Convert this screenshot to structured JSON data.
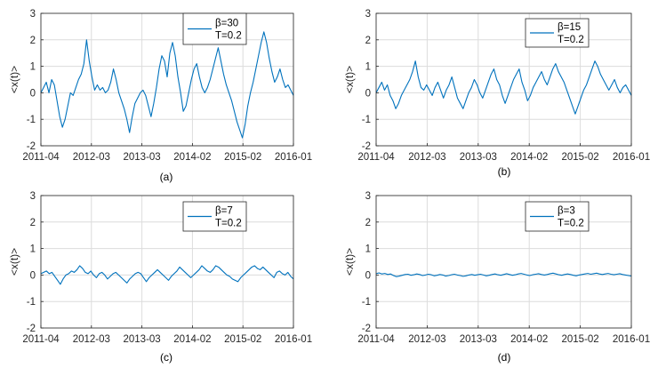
{
  "figure": {
    "line_color": "#0072BD",
    "grid_color": "#dcdcdc"
  },
  "chart_data": [
    {
      "type": "line",
      "caption": "(a)",
      "ylabel": "<x(t)>",
      "ylim": [
        -2,
        3
      ],
      "yticks": [
        "-2",
        "-1",
        "0",
        "1",
        "2",
        "3"
      ],
      "xtick_labels": [
        "2011-04",
        "2012-03",
        "2013-03",
        "2014-02",
        "2015-02",
        "2016-01"
      ],
      "grid": true,
      "legend_position": "top-right",
      "series": [
        {
          "name": "β=30"
        }
      ],
      "legend_note": "T=0.2",
      "values": [
        0.0,
        0.2,
        0.4,
        0.0,
        0.5,
        0.3,
        -0.3,
        -0.9,
        -1.3,
        -1.0,
        -0.5,
        0.0,
        -0.1,
        0.2,
        0.5,
        0.7,
        1.1,
        2.0,
        1.2,
        0.6,
        0.1,
        0.3,
        0.1,
        0.2,
        0.0,
        0.1,
        0.4,
        0.9,
        0.5,
        0.0,
        -0.3,
        -0.6,
        -1.0,
        -1.5,
        -0.9,
        -0.4,
        -0.2,
        0.0,
        0.1,
        -0.1,
        -0.5,
        -0.9,
        -0.4,
        0.2,
        0.9,
        1.4,
        1.2,
        0.6,
        1.5,
        1.9,
        1.4,
        0.6,
        0.0,
        -0.7,
        -0.5,
        0.0,
        0.5,
        0.9,
        1.1,
        0.6,
        0.2,
        0.0,
        0.2,
        0.5,
        0.9,
        1.3,
        1.7,
        1.2,
        0.7,
        0.3,
        0.0,
        -0.3,
        -0.7,
        -1.1,
        -1.4,
        -1.7,
        -1.2,
        -0.5,
        0.0,
        0.4,
        0.9,
        1.4,
        1.9,
        2.3,
        1.9,
        1.3,
        0.8,
        0.4,
        0.6,
        0.9,
        0.5,
        0.2,
        0.3,
        0.1,
        -0.1
      ]
    },
    {
      "type": "line",
      "caption": "(b)",
      "ylabel": "<x(t)>",
      "ylim": [
        -2,
        3
      ],
      "yticks": [
        "-2",
        "-1",
        "0",
        "1",
        "2",
        "3"
      ],
      "xtick_labels": [
        "2011-04",
        "2012-03",
        "2013-03",
        "2014-02",
        "2015-02",
        "2016-01"
      ],
      "grid": true,
      "legend_position": "top-right",
      "series": [
        {
          "name": "β=15"
        }
      ],
      "legend_note": "T=0.2",
      "values": [
        0.0,
        0.2,
        0.4,
        0.1,
        0.3,
        -0.1,
        -0.3,
        -0.6,
        -0.4,
        -0.1,
        0.1,
        0.3,
        0.5,
        0.8,
        1.2,
        0.6,
        0.2,
        0.1,
        0.3,
        0.1,
        -0.1,
        0.2,
        0.4,
        0.1,
        -0.2,
        0.1,
        0.3,
        0.6,
        0.2,
        -0.2,
        -0.4,
        -0.6,
        -0.3,
        0.0,
        0.2,
        0.5,
        0.3,
        0.0,
        -0.2,
        0.1,
        0.4,
        0.7,
        0.9,
        0.5,
        0.3,
        -0.1,
        -0.4,
        -0.1,
        0.2,
        0.5,
        0.7,
        0.9,
        0.4,
        0.1,
        -0.3,
        -0.1,
        0.2,
        0.4,
        0.6,
        0.8,
        0.5,
        0.3,
        0.6,
        0.9,
        1.1,
        0.8,
        0.6,
        0.4,
        0.1,
        -0.2,
        -0.5,
        -0.8,
        -0.5,
        -0.2,
        0.1,
        0.3,
        0.6,
        0.9,
        1.2,
        1.0,
        0.7,
        0.5,
        0.3,
        0.1,
        0.3,
        0.5,
        0.2,
        0.0,
        0.2,
        0.3,
        0.1,
        -0.1
      ]
    },
    {
      "type": "line",
      "caption": "(c)",
      "ylabel": "<x(t)>",
      "ylim": [
        -2,
        3
      ],
      "yticks": [
        "-2",
        "-1",
        "0",
        "1",
        "2",
        "3"
      ],
      "xtick_labels": [
        "2011-04",
        "2012-03",
        "2013-03",
        "2014-02",
        "2015-02",
        "2016-01"
      ],
      "grid": true,
      "legend_position": "top-right",
      "series": [
        {
          "name": "β=7"
        }
      ],
      "legend_note": "T=0.2",
      "values": [
        0.05,
        0.1,
        0.15,
        0.05,
        0.1,
        -0.05,
        -0.2,
        -0.35,
        -0.15,
        0.0,
        0.05,
        0.15,
        0.1,
        0.2,
        0.35,
        0.25,
        0.1,
        0.05,
        0.15,
        0.0,
        -0.1,
        0.05,
        0.1,
        0.0,
        -0.15,
        -0.05,
        0.05,
        0.1,
        0.0,
        -0.1,
        -0.2,
        -0.3,
        -0.15,
        -0.05,
        0.05,
        0.1,
        0.05,
        -0.1,
        -0.25,
        -0.1,
        0.0,
        0.1,
        0.2,
        0.1,
        0.0,
        -0.1,
        -0.2,
        -0.05,
        0.05,
        0.15,
        0.3,
        0.2,
        0.1,
        0.0,
        -0.1,
        0.0,
        0.1,
        0.2,
        0.35,
        0.25,
        0.15,
        0.1,
        0.2,
        0.35,
        0.3,
        0.2,
        0.1,
        0.0,
        -0.05,
        -0.15,
        -0.2,
        -0.25,
        -0.1,
        0.0,
        0.1,
        0.2,
        0.3,
        0.35,
        0.25,
        0.2,
        0.3,
        0.2,
        0.1,
        0.0,
        -0.1,
        0.1,
        0.15,
        0.05,
        0.0,
        0.1,
        -0.05,
        -0.15
      ]
    },
    {
      "type": "line",
      "caption": "(d)",
      "ylabel": "<x(t)>",
      "ylim": [
        -2,
        3
      ],
      "yticks": [
        "-2",
        "-1",
        "0",
        "1",
        "2",
        "3"
      ],
      "xtick_labels": [
        "2011-04",
        "2012-03",
        "2013-03",
        "2014-02",
        "2015-02",
        "2016-01"
      ],
      "grid": true,
      "legend_position": "top-right",
      "series": [
        {
          "name": "β=3"
        }
      ],
      "legend_note": "T=0.2",
      "values": [
        0.05,
        0.08,
        0.04,
        0.06,
        0.02,
        0.04,
        -0.02,
        -0.06,
        -0.04,
        -0.01,
        0.02,
        0.03,
        -0.01,
        0.01,
        0.04,
        0.02,
        -0.02,
        0.0,
        0.03,
        0.01,
        -0.03,
        -0.01,
        0.02,
        0.0,
        -0.04,
        -0.02,
        0.01,
        0.03,
        0.0,
        -0.02,
        -0.05,
        -0.03,
        0.0,
        0.02,
        -0.01,
        0.01,
        0.03,
        0.0,
        -0.03,
        -0.01,
        0.02,
        0.04,
        0.01,
        -0.01,
        0.02,
        0.05,
        0.02,
        -0.01,
        0.01,
        0.04,
        0.06,
        0.03,
        0.0,
        -0.02,
        0.01,
        0.03,
        0.05,
        0.02,
        0.0,
        0.02,
        0.05,
        0.07,
        0.04,
        0.01,
        -0.01,
        0.02,
        0.04,
        0.02,
        -0.01,
        -0.03,
        0.0,
        0.02,
        0.04,
        0.06,
        0.03,
        0.05,
        0.07,
        0.04,
        0.02,
        0.04,
        0.06,
        0.03,
        0.01,
        0.03,
        0.05,
        0.02,
        0.0,
        -0.02,
        -0.04
      ]
    }
  ]
}
